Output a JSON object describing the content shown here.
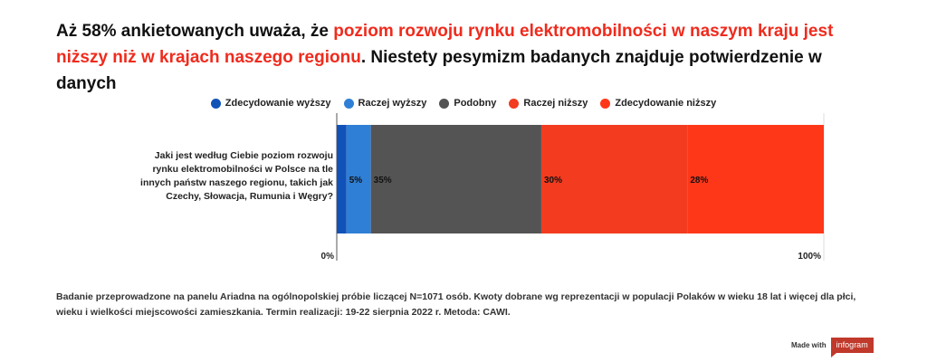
{
  "title": {
    "part1": "Aż 58% ankietowanych uważa, że ",
    "highlight": "poziom rozwoju rynku elektromobilności w naszym kraju jest niższy niż w krajach naszego regionu",
    "part2": ". Niestety pesymizm badanych znajduje potwierdzenie w danych",
    "highlight_color": "#ef2b1d"
  },
  "chart_data": {
    "type": "bar",
    "orientation": "horizontal",
    "stacked": true,
    "percent": true,
    "categories": [
      "Jaki jest według Ciebie poziom rozwoju rynku elektromobilności w Polsce na tle innych państw naszego regionu, takich jak Czechy, Słowacja, Rumunia i Węgry?"
    ],
    "series": [
      {
        "name": "Zdecydowanie wyższy",
        "values": [
          2
        ],
        "color": "#1152b8",
        "label": ""
      },
      {
        "name": "Raczej wyższy",
        "values": [
          5
        ],
        "color": "#2f7fd6",
        "label": "5%"
      },
      {
        "name": "Podobny",
        "values": [
          35
        ],
        "color": "#545454",
        "label": "35%"
      },
      {
        "name": "Raczej niższy",
        "values": [
          30
        ],
        "color": "#f23b1f",
        "label": "30%"
      },
      {
        "name": "Zdecydowanie niższy",
        "values": [
          28
        ],
        "color": "#ff3719",
        "label": "28%"
      }
    ],
    "xlim": [
      0,
      100
    ],
    "x_tick_labels": [
      "0%",
      "100%"
    ],
    "legend_position": "top"
  },
  "footnote": "Badanie przeprowadzone na panelu Ariadna na ogólnopolskiej próbie liczącej N=1071 osób. Kwoty dobrane wg reprezentacji w populacji Polaków w wieku 18 lat i więcej dla płci, wieku i wielkości miejscowości zamieszkania. Termin realizacji:  19-22 sierpnia 2022 r. Metoda: CAWI.",
  "branding": {
    "made_with": "Made with",
    "brand": "infogram"
  }
}
